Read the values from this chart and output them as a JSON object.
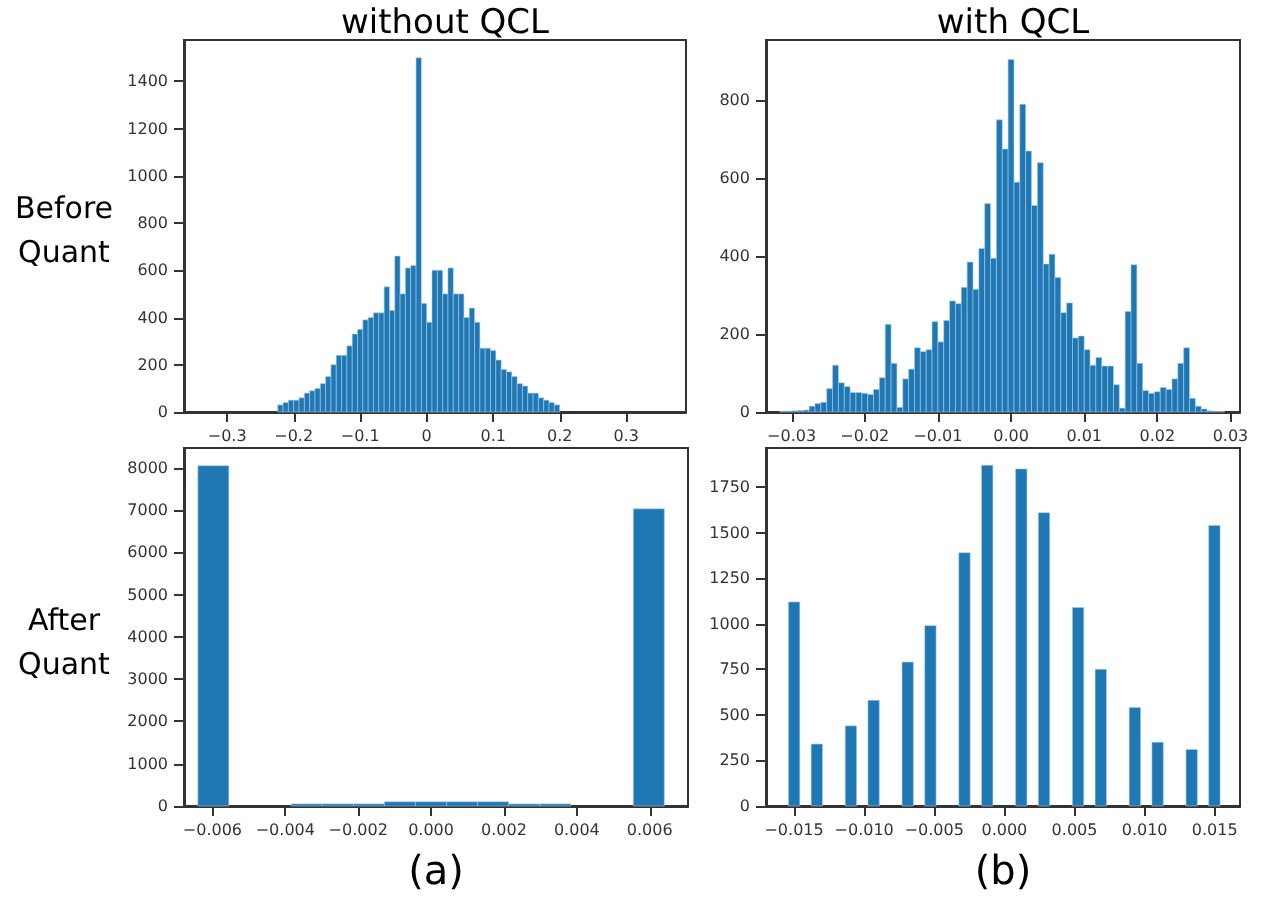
{
  "chart_data": [
    {
      "type": "histogram",
      "title": "without QCL",
      "ylabel": "Before Quant",
      "color": "#1f77b4",
      "grid": false,
      "bins": [
        -0.328,
        -0.32,
        -0.312,
        -0.304,
        -0.296,
        -0.288,
        -0.28,
        -0.272,
        -0.264,
        -0.256,
        -0.248,
        -0.24,
        -0.232,
        -0.224,
        -0.216,
        -0.208,
        -0.2,
        -0.192,
        -0.184,
        -0.176,
        -0.168,
        -0.16,
        -0.152,
        -0.144,
        -0.136,
        -0.128,
        -0.12,
        -0.112,
        -0.104,
        -0.096,
        -0.088,
        -0.08,
        -0.072,
        -0.064,
        -0.056,
        -0.048,
        -0.04,
        -0.032,
        -0.024,
        -0.016,
        -0.008,
        0,
        0.008,
        0.016,
        0.024,
        0.032,
        0.04,
        0.048,
        0.056,
        0.064,
        0.072,
        0.08,
        0.088,
        0.096,
        0.104,
        0.112,
        0.12,
        0.128,
        0.136,
        0.144,
        0.152,
        0.16,
        0.168,
        0.176,
        0.184,
        0.192,
        0.2,
        0.208,
        0.216,
        0.224,
        0.232,
        0.24,
        0.248,
        0.256,
        0.264,
        0.272,
        0.28,
        0.288,
        0.296,
        0.304,
        0.312,
        0.32,
        0.328,
        0.336,
        0.344,
        0.352
      ],
      "values": [
        0,
        0,
        0,
        0,
        0,
        0,
        0,
        0,
        0,
        0,
        0,
        0,
        0,
        30,
        40,
        50,
        50,
        60,
        80,
        90,
        100,
        120,
        150,
        200,
        240,
        240,
        280,
        330,
        350,
        390,
        400,
        420,
        420,
        530,
        430,
        660,
        500,
        610,
        620,
        1500,
        460,
        380,
        600,
        600,
        500,
        610,
        500,
        500,
        400,
        440,
        380,
        270,
        270,
        260,
        220,
        180,
        170,
        150,
        120,
        110,
        80,
        80,
        60,
        50,
        40,
        30,
        0,
        0,
        0,
        0,
        0,
        0,
        0,
        0,
        0,
        0,
        0,
        0,
        0,
        0,
        0,
        0,
        0,
        0,
        0
      ],
      "xlim": [
        -0.365,
        0.39
      ],
      "ylim": [
        0,
        1575
      ],
      "xticks": [
        {
          "value": -0.3,
          "label": "−0.3"
        },
        {
          "value": -0.2,
          "label": "−0.2"
        },
        {
          "value": -0.1,
          "label": "−0.1"
        },
        0.0,
        0.1,
        0.2,
        0.3
      ],
      "yticks": [
        0,
        200,
        400,
        600,
        800,
        1000,
        1200,
        1400
      ]
    },
    {
      "type": "histogram",
      "title": "with QCL",
      "color": "#1f77b4",
      "grid": false,
      "bins": [
        -0.0316,
        -0.0308,
        -0.03,
        -0.0292,
        -0.0284,
        -0.0276,
        -0.0268,
        -0.026,
        -0.0252,
        -0.0244,
        -0.0236,
        -0.0228,
        -0.022,
        -0.0212,
        -0.0204,
        -0.0196,
        -0.0188,
        -0.018,
        -0.0172,
        -0.0164,
        -0.0156,
        -0.0148,
        -0.014,
        -0.0132,
        -0.0124,
        -0.0116,
        -0.0108,
        -0.01,
        -0.0092,
        -0.0084,
        -0.0076,
        -0.0068,
        -0.006,
        -0.0052,
        -0.0044,
        -0.0036,
        -0.0028,
        -0.002,
        -0.0012,
        -0.0004,
        0.0004,
        0.0012,
        0.002,
        0.0028,
        0.0036,
        0.0044,
        0.0052,
        0.006,
        0.0068,
        0.0076,
        0.0084,
        0.0092,
        0.01,
        0.0108,
        0.0116,
        0.0124,
        0.0132,
        0.014,
        0.0148,
        0.0156,
        0.0164,
        0.0172,
        0.018,
        0.0188,
        0.0196,
        0.0204,
        0.0212,
        0.022,
        0.0228,
        0.0236,
        0.0244,
        0.0252,
        0.026,
        0.0268,
        0.0276,
        0.0284,
        0.0292
      ],
      "values": [
        2,
        2,
        3,
        4,
        5,
        15,
        22,
        25,
        60,
        120,
        75,
        65,
        50,
        50,
        48,
        45,
        58,
        88,
        225,
        125,
        12,
        85,
        110,
        165,
        155,
        160,
        232,
        180,
        235,
        285,
        278,
        320,
        385,
        315,
        420,
        535,
        395,
        750,
        675,
        905,
        590,
        790,
        670,
        530,
        640,
        380,
        405,
        345,
        255,
        280,
        190,
        195,
        160,
        120,
        140,
        118,
        118,
        70,
        10,
        258,
        378,
        125,
        55,
        48,
        52,
        63,
        58,
        85,
        125,
        165,
        35,
        15,
        8,
        3,
        2,
        1
      ],
      "xlim": [
        -0.0335,
        0.0313
      ],
      "ylim": [
        0,
        955
      ],
      "xticks": [
        {
          "value": -0.03,
          "label": "−0.03"
        },
        {
          "value": -0.02,
          "label": "−0.02"
        },
        {
          "value": -0.01,
          "label": "−0.01"
        },
        {
          "value": 0,
          "label": "0.00"
        },
        0.01,
        0.02,
        0.03
      ],
      "yticks": [
        0,
        200,
        400,
        600,
        800
      ]
    },
    {
      "type": "histogram",
      "ylabel": "After Quant",
      "xlabel": "(a)",
      "color": "#1f77b4",
      "grid": false,
      "bins": [
        -0.0064,
        -0.00555,
        -0.00469,
        -0.00384,
        -0.00299,
        -0.00213,
        -0.00128,
        -0.00043,
        0.00043,
        0.00128,
        0.00213,
        0.00299,
        0.00384,
        0.00469,
        0.00555,
        0.0064
      ],
      "values": [
        8050,
        0,
        0,
        50,
        50,
        50,
        100,
        100,
        100,
        100,
        50,
        50,
        0,
        0,
        7030
      ],
      "xlim": [
        -0.00678,
        0.00705
      ],
      "ylim": [
        0,
        8470
      ],
      "xticks": [
        {
          "value": -0.006,
          "label": "−0.006"
        },
        {
          "value": -0.004,
          "label": "−0.004"
        },
        {
          "value": -0.002,
          "label": "−0.002"
        },
        {
          "value": 0,
          "label": "0.000"
        },
        0.002,
        0.004,
        0.006
      ],
      "yticks": [
        0,
        1000,
        2000,
        3000,
        4000,
        5000,
        6000,
        7000,
        8000
      ]
    },
    {
      "type": "histogram",
      "xlabel": "(b)",
      "color": "#1f77b4",
      "grid": false,
      "bins": [
        -0.0154,
        -0.01459,
        -0.01378,
        -0.01297,
        -0.01216,
        -0.01135,
        -0.01054,
        -0.00973,
        -0.00892,
        -0.00811,
        -0.0073,
        -0.00649,
        -0.00568,
        -0.00487,
        -0.00406,
        -0.00325,
        -0.00244,
        -0.00163,
        -0.00082,
        -1e-05,
        0.0008,
        0.00161,
        0.00242,
        0.00323,
        0.00404,
        0.00485,
        0.00566,
        0.00647,
        0.00728,
        0.00809,
        0.0089,
        0.00971,
        0.01052,
        0.01133,
        0.01214,
        0.01295,
        0.01376,
        0.01457,
        0.01538
      ],
      "values": [
        1120,
        0,
        340,
        0,
        0,
        440,
        0,
        580,
        0,
        0,
        790,
        0,
        990,
        0,
        0,
        1390,
        0,
        1870,
        0,
        0,
        1850,
        0,
        1610,
        0,
        0,
        1090,
        0,
        750,
        0,
        0,
        540,
        0,
        350,
        0,
        0,
        310,
        0,
        1540
      ],
      "xlim": [
        -0.017,
        0.0168
      ],
      "ylim": [
        0,
        1965
      ],
      "xticks": [
        {
          "value": -0.015,
          "label": "−0.015"
        },
        {
          "value": -0.01,
          "label": "−0.010"
        },
        {
          "value": -0.005,
          "label": "−0.005"
        },
        {
          "value": 0,
          "label": "0.000"
        },
        {
          "value": 0.005,
          "label": "0.005"
        },
        {
          "value": 0.01,
          "label": "0.010"
        },
        {
          "value": 0.015,
          "label": "0.015"
        }
      ],
      "yticks": [
        0,
        250,
        500,
        750,
        1000,
        1250,
        1500,
        1750
      ]
    }
  ]
}
